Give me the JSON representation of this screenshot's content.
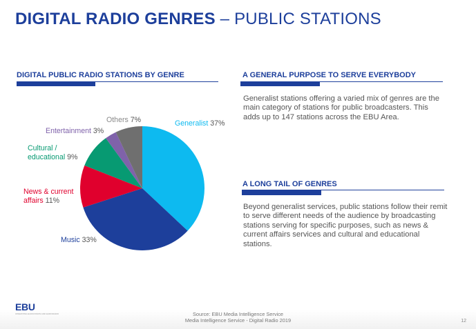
{
  "header": {
    "title_bold": "DIGITAL RADIO GENRES",
    "title_rest": " – PUBLIC STATIONS"
  },
  "left_section": {
    "heading": "DIGITAL PUBLIC RADIO STATIONS BY GENRE"
  },
  "right_sections": [
    {
      "heading": "A GENERAL PURPOSE TO SERVE EVERYBODY",
      "body": "Generalist stations offering a varied mix of genres are the main category of stations for public broadcasters. This adds up to 147 stations across the EBU Area."
    },
    {
      "heading": "A LONG TAIL OF GENRES",
      "body": "Beyond generalist services, public stations follow their remit to serve different needs of the audience by broadcasting stations serving for specific purposes, such as news & current affairs services and cultural and educational stations."
    }
  ],
  "chart_data": {
    "type": "pie",
    "title": "DIGITAL PUBLIC RADIO STATIONS BY GENRE",
    "categories": [
      "Generalist",
      "Music",
      "News & current affairs",
      "Cultural / educational",
      "Entertainment",
      "Others"
    ],
    "values": [
      37,
      33,
      11,
      9,
      3,
      7
    ],
    "unit": "%",
    "colors": [
      "#0dbaf0",
      "#1d3f9b",
      "#e0002d",
      "#079a72",
      "#7f62aa",
      "#6f6f6f"
    ],
    "start_angle": "12 o'clock, clockwise",
    "legend": "inline labels"
  },
  "labels": {
    "generalist": {
      "name": "Generalist",
      "pct": "37%"
    },
    "music": {
      "name": "Music",
      "pct": "33%"
    },
    "news_1": "News & current",
    "news_2": "affairs",
    "news_pct": "11%",
    "cultural_1": "Cultural /",
    "cultural_2": "educational",
    "cultural_pct": "9%",
    "entertainment": {
      "name": "Entertainment",
      "pct": "3%"
    },
    "others": {
      "name": "Others",
      "pct": "7%"
    }
  },
  "footer": {
    "source_line1": "Source: EBU Media Intelligence Service",
    "source_line2": "Media Intelligence Service - Digital Radio 2019",
    "logo": "EBU",
    "logo_tagline": "OPERATING EUROVISION AND EURORADIO",
    "page_number": "12"
  }
}
